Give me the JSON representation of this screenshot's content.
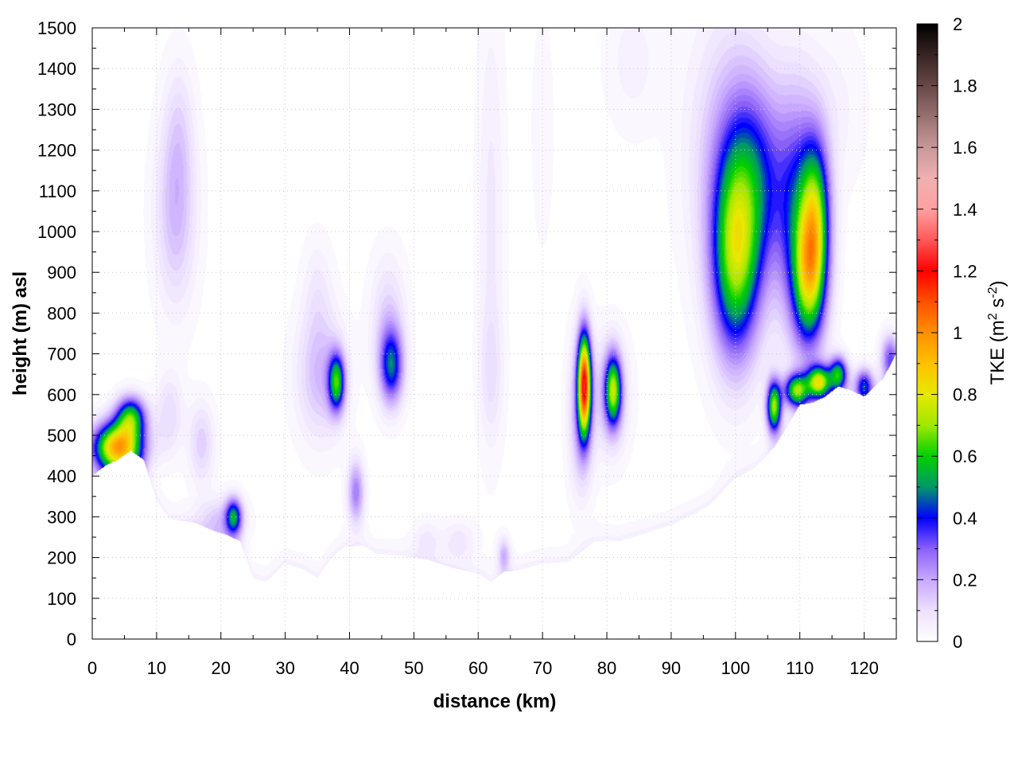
{
  "chart_data": {
    "type": "heatmap",
    "xlabel": "distance (km)",
    "ylabel": "height (m) asl",
    "colorbar_label": "TKE (m",
    "colorbar_label_sup1": "2",
    "colorbar_label_mid": " s",
    "colorbar_label_sup2": "-2",
    "colorbar_label_end": ")",
    "xlim": [
      0,
      125
    ],
    "ylim": [
      0,
      1500
    ],
    "clim": [
      0,
      2
    ],
    "x_ticks": [
      "0",
      "10",
      "20",
      "30",
      "40",
      "50",
      "60",
      "70",
      "80",
      "90",
      "100",
      "110",
      "120"
    ],
    "y_ticks": [
      "0",
      "100",
      "200",
      "300",
      "400",
      "500",
      "600",
      "700",
      "800",
      "900",
      "1000",
      "1100",
      "1200",
      "1300",
      "1400",
      "1500"
    ],
    "c_ticks": [
      "0",
      "0.2",
      "0.4",
      "0.6",
      "0.8",
      "1",
      "1.2",
      "1.4",
      "1.6",
      "1.8",
      "2"
    ],
    "grid": true,
    "colormap": [
      {
        "v": 0.0,
        "c": "#ffffff"
      },
      {
        "v": 0.1,
        "c": "#ece0ff"
      },
      {
        "v": 0.2,
        "c": "#c8a8ff"
      },
      {
        "v": 0.3,
        "c": "#8a60f8"
      },
      {
        "v": 0.4,
        "c": "#0000ff"
      },
      {
        "v": 0.5,
        "c": "#009868"
      },
      {
        "v": 0.6,
        "c": "#00d000"
      },
      {
        "v": 0.7,
        "c": "#a0e800"
      },
      {
        "v": 0.8,
        "c": "#e8e800"
      },
      {
        "v": 0.9,
        "c": "#ffc000"
      },
      {
        "v": 1.0,
        "c": "#ff9000"
      },
      {
        "v": 1.1,
        "c": "#ff5000"
      },
      {
        "v": 1.2,
        "c": "#ff0000"
      },
      {
        "v": 1.3,
        "c": "#ff5858"
      },
      {
        "v": 1.4,
        "c": "#ffa0a0"
      },
      {
        "v": 1.5,
        "c": "#f0b0b0"
      },
      {
        "v": 1.6,
        "c": "#c89898"
      },
      {
        "v": 1.7,
        "c": "#987070"
      },
      {
        "v": 1.8,
        "c": "#684848"
      },
      {
        "v": 1.9,
        "c": "#382424"
      },
      {
        "v": 2.0,
        "c": "#000000"
      }
    ],
    "terrain": [
      [
        0,
        400
      ],
      [
        2,
        425
      ],
      [
        4,
        440
      ],
      [
        6,
        462
      ],
      [
        8,
        440
      ],
      [
        10,
        340
      ],
      [
        12,
        295
      ],
      [
        16,
        285
      ],
      [
        19,
        265
      ],
      [
        21,
        255
      ],
      [
        23,
        240
      ],
      [
        25,
        150
      ],
      [
        27,
        140
      ],
      [
        30,
        185
      ],
      [
        33,
        170
      ],
      [
        35,
        150
      ],
      [
        37,
        195
      ],
      [
        39,
        225
      ],
      [
        42,
        230
      ],
      [
        44,
        210
      ],
      [
        48,
        205
      ],
      [
        52,
        195
      ],
      [
        56,
        175
      ],
      [
        60,
        160
      ],
      [
        62,
        140
      ],
      [
        64,
        165
      ],
      [
        66,
        168
      ],
      [
        70,
        185
      ],
      [
        74,
        190
      ],
      [
        78,
        238
      ],
      [
        80,
        242
      ],
      [
        82,
        240
      ],
      [
        85,
        255
      ],
      [
        90,
        280
      ],
      [
        94,
        310
      ],
      [
        96,
        330
      ],
      [
        100,
        395
      ],
      [
        103,
        420
      ],
      [
        106,
        470
      ],
      [
        108,
        520
      ],
      [
        110,
        575
      ],
      [
        112,
        580
      ],
      [
        114,
        595
      ],
      [
        116,
        620
      ],
      [
        118,
        610
      ],
      [
        120,
        595
      ],
      [
        123,
        640
      ],
      [
        125,
        700
      ]
    ],
    "blobs": [
      {
        "x": 4.0,
        "z": 470,
        "sx": 2.6,
        "sz": 42,
        "a": 0.95
      },
      {
        "x": 6.0,
        "z": 545,
        "sx": 1.6,
        "sz": 35,
        "a": 0.55
      },
      {
        "x": 13.0,
        "z": 1050,
        "sx": 2.2,
        "sz": 160,
        "a": 0.17
      },
      {
        "x": 13.5,
        "z": 1260,
        "sx": 1.6,
        "sz": 120,
        "a": 0.07
      },
      {
        "x": 12.0,
        "z": 550,
        "sx": 1.5,
        "sz": 70,
        "a": 0.11
      },
      {
        "x": 17.0,
        "z": 480,
        "sx": 1.4,
        "sz": 70,
        "a": 0.13
      },
      {
        "x": 22.0,
        "z": 300,
        "sx": 0.9,
        "sz": 32,
        "a": 0.45
      },
      {
        "x": 20.0,
        "z": 290,
        "sx": 2.5,
        "sz": 40,
        "a": 0.14
      },
      {
        "x": 38.0,
        "z": 630,
        "sx": 0.9,
        "sz": 50,
        "a": 0.55
      },
      {
        "x": 35.5,
        "z": 650,
        "sx": 2.6,
        "sz": 110,
        "a": 0.17
      },
      {
        "x": 35.0,
        "z": 860,
        "sx": 1.6,
        "sz": 90,
        "a": 0.06
      },
      {
        "x": 41.0,
        "z": 360,
        "sx": 0.9,
        "sz": 55,
        "a": 0.26
      },
      {
        "x": 46.5,
        "z": 670,
        "sx": 1.3,
        "sz": 65,
        "a": 0.42
      },
      {
        "x": 46.0,
        "z": 780,
        "sx": 1.9,
        "sz": 110,
        "a": 0.12
      },
      {
        "x": 62.0,
        "z": 1050,
        "sx": 1.5,
        "sz": 360,
        "a": 0.07
      },
      {
        "x": 62.0,
        "z": 650,
        "sx": 1.3,
        "sz": 110,
        "a": 0.07
      },
      {
        "x": 64.0,
        "z": 205,
        "sx": 0.7,
        "sz": 30,
        "a": 0.18
      },
      {
        "x": 57.0,
        "z": 240,
        "sx": 1.8,
        "sz": 35,
        "a": 0.08
      },
      {
        "x": 52.0,
        "z": 245,
        "sx": 1.5,
        "sz": 35,
        "a": 0.07
      },
      {
        "x": 76.5,
        "z": 625,
        "sx": 0.7,
        "sz": 85,
        "a": 1.05
      },
      {
        "x": 76.0,
        "z": 560,
        "sx": 1.3,
        "sz": 130,
        "a": 0.22
      },
      {
        "x": 81.0,
        "z": 610,
        "sx": 0.9,
        "sz": 60,
        "a": 0.62
      },
      {
        "x": 80.5,
        "z": 600,
        "sx": 2.0,
        "sz": 100,
        "a": 0.15
      },
      {
        "x": 100.0,
        "z": 930,
        "sx": 2.6,
        "sz": 170,
        "a": 0.6
      },
      {
        "x": 103.0,
        "z": 1120,
        "sx": 3.5,
        "sz": 170,
        "a": 0.32
      },
      {
        "x": 99.0,
        "z": 1200,
        "sx": 4.5,
        "sz": 240,
        "a": 0.14
      },
      {
        "x": 111.5,
        "z": 890,
        "sx": 1.8,
        "sz": 120,
        "a": 0.62
      },
      {
        "x": 112.5,
        "z": 1050,
        "sx": 1.6,
        "sz": 130,
        "a": 0.5
      },
      {
        "x": 109.5,
        "z": 1050,
        "sx": 2.3,
        "sz": 200,
        "a": 0.3
      },
      {
        "x": 106.0,
        "z": 570,
        "sx": 0.8,
        "sz": 45,
        "a": 0.7
      },
      {
        "x": 109.5,
        "z": 610,
        "sx": 1.3,
        "sz": 28,
        "a": 0.65
      },
      {
        "x": 113.0,
        "z": 630,
        "sx": 1.3,
        "sz": 28,
        "a": 0.75
      },
      {
        "x": 116.0,
        "z": 650,
        "sx": 1.0,
        "sz": 30,
        "a": 0.55
      },
      {
        "x": 120.0,
        "z": 620,
        "sx": 1.0,
        "sz": 30,
        "a": 0.42
      },
      {
        "x": 124.0,
        "z": 690,
        "sx": 1.0,
        "sz": 40,
        "a": 0.3
      },
      {
        "x": 84.0,
        "z": 1420,
        "sx": 3.0,
        "sz": 120,
        "a": 0.05
      },
      {
        "x": 115.0,
        "z": 1300,
        "sx": 3.5,
        "sz": 140,
        "a": 0.05
      },
      {
        "x": 70.0,
        "z": 1250,
        "sx": 1.2,
        "sz": 200,
        "a": 0.035
      }
    ]
  }
}
